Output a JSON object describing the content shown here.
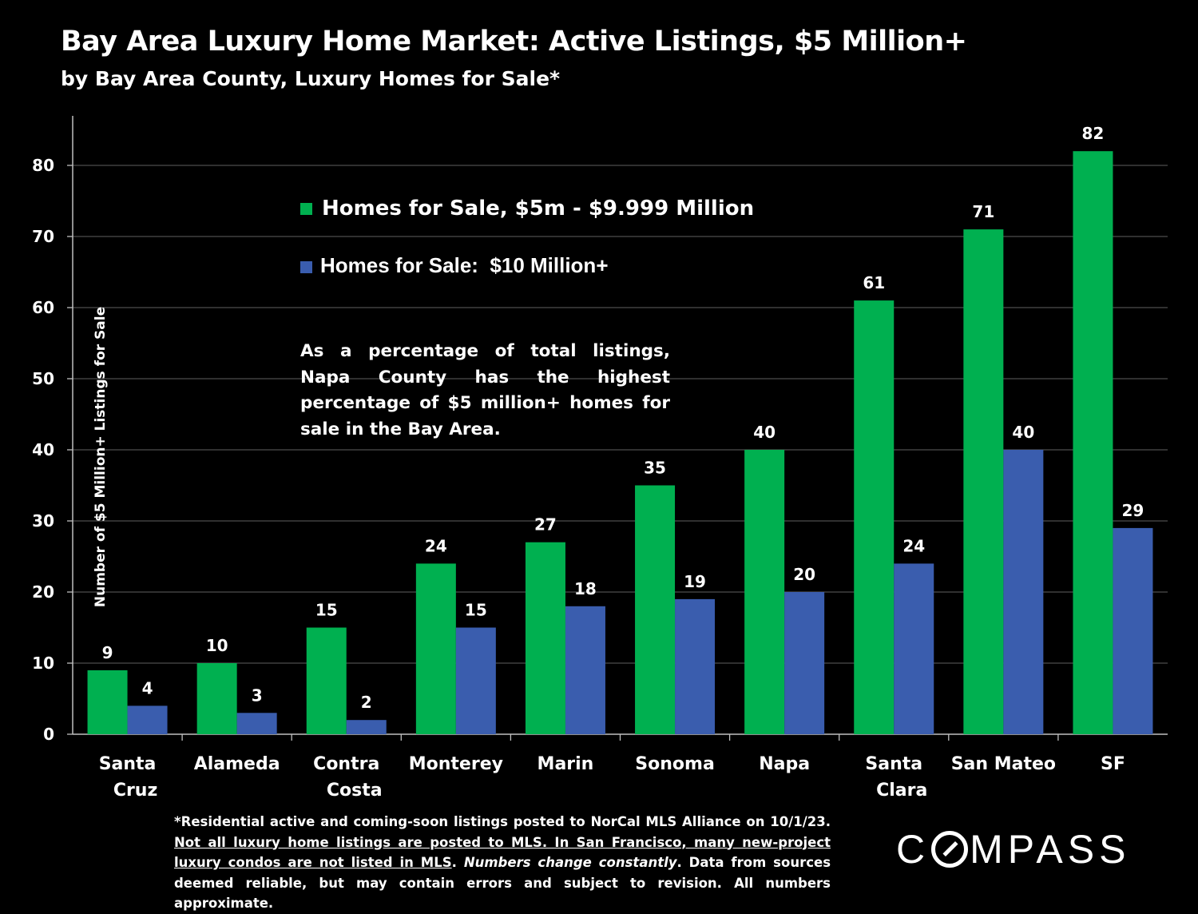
{
  "header": {
    "title": "Bay Area Luxury Home Market: Active Listings, $5 Million+",
    "subtitle": "by Bay Area County, Luxury Homes for Sale*"
  },
  "annotation": "As a percentage of total listings, Napa County has the highest percentage of $5 million+ homes for sale in the Bay Area.",
  "footnote": {
    "part1": "*Residential active and coming-soon listings posted to NorCal MLS Alliance on 10/1/23. ",
    "part2_underlined": "Not all luxury home listings are posted to MLS. In San Francisco, many new-project luxury condos are not listed in MLS",
    "part3": ". ",
    "part4_italic": "Numbers change constantly",
    "part5": ". Data from sources deemed reliable, but may contain errors and subject to revision. All numbers approximate."
  },
  "logo": {
    "before": "C",
    "after": "MPASS"
  },
  "colors": {
    "green": "#00B050",
    "blue": "#3A5DAE",
    "grid": "#4d4d4d",
    "background": "#000000"
  },
  "chart_data": {
    "type": "bar",
    "title": "Bay Area Luxury Home Market: Active Listings, $5 Million+",
    "subtitle": "by Bay Area County, Luxury Homes for Sale*",
    "ylabel": "Number of $5 Million+ Listings for Sale",
    "xlabel": "",
    "ylim": [
      0,
      87
    ],
    "yticks": [
      0,
      10,
      20,
      30,
      40,
      50,
      60,
      70,
      80
    ],
    "grid": true,
    "legend_position": "top-left",
    "categories": [
      [
        "Santa",
        "Cruz"
      ],
      [
        "Alameda"
      ],
      [
        "Contra",
        "Costa"
      ],
      [
        "Monterey"
      ],
      [
        "Marin"
      ],
      [
        "Sonoma"
      ],
      [
        "Napa"
      ],
      [
        "Santa",
        "Clara"
      ],
      [
        "San Mateo"
      ],
      [
        "SF"
      ]
    ],
    "series": [
      {
        "name": "Homes for Sale, $5m - $9.999 Million",
        "color": "#00B050",
        "values": [
          9,
          10,
          15,
          24,
          27,
          35,
          40,
          61,
          71,
          82
        ]
      },
      {
        "name": "Homes for Sale:  $10 Million+",
        "color": "#3A5DAE",
        "values": [
          4,
          3,
          2,
          15,
          18,
          19,
          20,
          24,
          40,
          29
        ]
      }
    ]
  }
}
